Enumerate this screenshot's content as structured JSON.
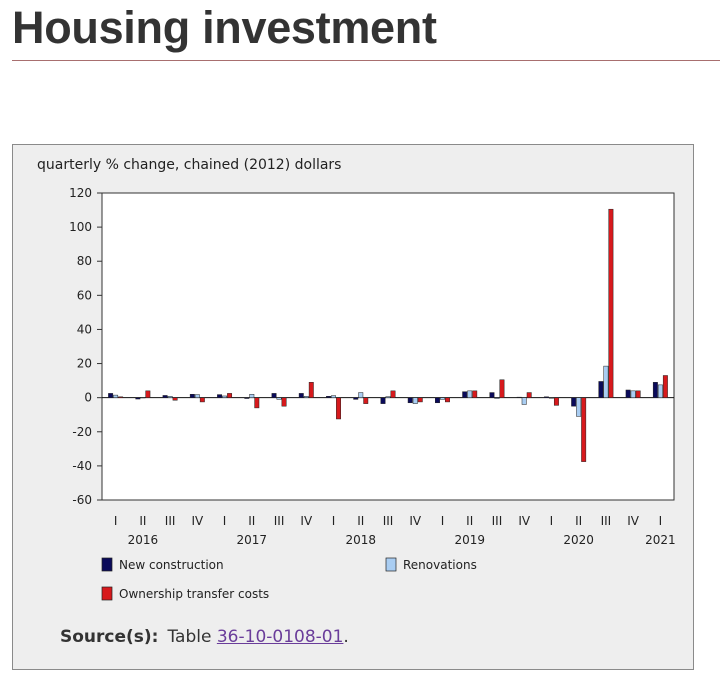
{
  "page": {
    "title": "Housing investment"
  },
  "source": {
    "label": "Source(s):",
    "prefix": "Table",
    "link_text": "36-10-0108-01",
    "suffix": "."
  },
  "chart_data": {
    "type": "bar",
    "title": "",
    "ylabel": "quarterly % change, chained (2012) dollars",
    "xlabel": "",
    "ylim": [
      -60,
      120
    ],
    "yticks": [
      -60,
      -40,
      -20,
      0,
      20,
      40,
      60,
      80,
      100,
      120
    ],
    "grid": false,
    "legend_position": "bottom",
    "categories": [
      "I",
      "II",
      "III",
      "IV",
      "I",
      "II",
      "III",
      "IV",
      "I",
      "II",
      "III",
      "IV",
      "I",
      "II",
      "III",
      "IV",
      "I",
      "II",
      "III",
      "IV",
      "I"
    ],
    "year_labels": [
      {
        "label": "2016",
        "category_index": 1
      },
      {
        "label": "2017",
        "category_index": 5
      },
      {
        "label": "2018",
        "category_index": 9
      },
      {
        "label": "2019",
        "category_index": 13
      },
      {
        "label": "2020",
        "category_index": 17
      },
      {
        "label": "2021",
        "category_index": 20
      }
    ],
    "series": [
      {
        "name": "New construction",
        "color": "#0a0a5a",
        "values": [
          2.5,
          -0.8,
          1.3,
          2.0,
          1.8,
          -0.5,
          2.5,
          2.5,
          0.8,
          -1.0,
          -3.5,
          -3.0,
          -3.0,
          3.5,
          3.0,
          0.3,
          0.5,
          -5.0,
          9.5,
          4.5,
          9.0
        ]
      },
      {
        "name": "Renovations",
        "color": "#a9cdf2",
        "values": [
          1.5,
          0.2,
          0.8,
          1.8,
          1.0,
          2.0,
          -1.0,
          0.8,
          1.2,
          3.0,
          0.6,
          -3.5,
          -1.0,
          4.0,
          -0.5,
          -4.0,
          -0.2,
          -11.0,
          18.5,
          4.0,
          7.5
        ]
      },
      {
        "name": "Ownership transfer costs",
        "color": "#d7191c",
        "values": [
          0.5,
          4.0,
          -1.5,
          -2.5,
          2.5,
          -6.0,
          -5.0,
          9.0,
          -12.5,
          -3.5,
          4.0,
          -2.5,
          -2.5,
          4.0,
          10.5,
          3.0,
          -4.5,
          -37.5,
          110.5,
          4.0,
          13.0
        ]
      }
    ]
  }
}
